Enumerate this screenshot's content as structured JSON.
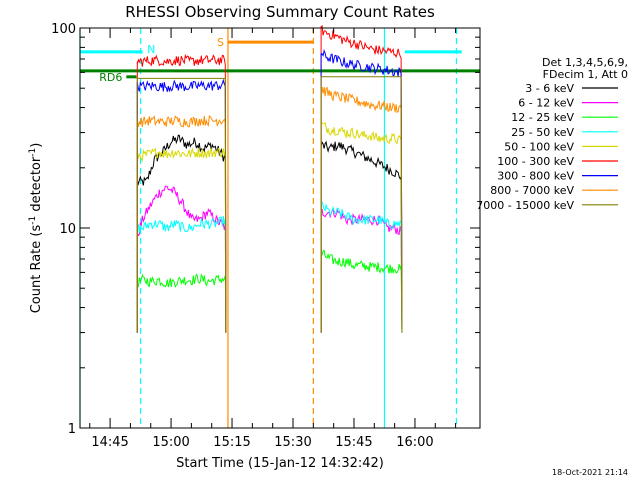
{
  "chart_data": {
    "type": "line",
    "title": "RHESSI Observing Summary Count Rates",
    "xlabel": "Start Time (15-Jan-12 14:32:42)",
    "ylabel_parts": [
      "Count Rate (s",
      "-1",
      " detector",
      "-1",
      ")"
    ],
    "y_scale": "log",
    "ylim": [
      1,
      100
    ],
    "y_ticks": [
      {
        "value": 1,
        "label": "1"
      },
      {
        "value": 10,
        "label": "10"
      },
      {
        "value": 100,
        "label": "100"
      }
    ],
    "xlim_minutes": [
      877.6,
      976.0
    ],
    "x_ticks": [
      {
        "minute": 885,
        "label": "14:45"
      },
      {
        "minute": 900,
        "label": "15:00"
      },
      {
        "minute": 915,
        "label": "15:15"
      },
      {
        "minute": 930,
        "label": "15:30"
      },
      {
        "minute": 945,
        "label": "15:45"
      },
      {
        "minute": 960,
        "label": "16:00"
      }
    ],
    "legend": {
      "header": [
        "Det 1,3,4,5,6,9,",
        "FDecim 1, Att 0"
      ],
      "placement": "right",
      "entries": [
        {
          "label": "3 - 6 keV",
          "color": "#000000"
        },
        {
          "label": "6 - 12 keV",
          "color": "#ff00ff"
        },
        {
          "label": "12 - 25 keV",
          "color": "#00ff00"
        },
        {
          "label": "25 - 50 keV",
          "color": "#00ffff"
        },
        {
          "label": "50 - 100 keV",
          "color": "#d8d800"
        },
        {
          "label": "100 - 300 keV",
          "color": "#ff0000"
        },
        {
          "label": "300 - 800 keV",
          "color": "#0000ff"
        },
        {
          "label": "800 - 7000 keV",
          "color": "#ff8c00"
        },
        {
          "label": "7000 - 15000 keV",
          "color": "#808000"
        }
      ]
    },
    "series": [
      {
        "name": "3 - 6 keV",
        "color": "#000000",
        "segments": [
          {
            "x": [
              891.7,
              894,
              896,
              898,
              900,
              902,
              904,
              906,
              908,
              910,
              912,
              913.5
            ],
            "y": [
              17,
              17,
              22,
              24,
              27,
              28,
              26,
              27,
              25,
              26,
              24,
              22
            ]
          },
          {
            "x": [
              936.9,
              939,
              941,
              943,
              945,
              947,
              949,
              951,
              953,
              955,
              956.8
            ],
            "y": [
              26,
              25,
              26,
              25,
              24,
              23,
              22,
              21,
              20,
              19,
              18
            ]
          }
        ]
      },
      {
        "name": "6 - 12 keV",
        "color": "#ff00ff",
        "segments": [
          {
            "x": [
              891.7,
              893,
              895,
              897,
              899,
              901,
              903,
              905,
              907,
              909,
              911,
              913.5
            ],
            "y": [
              9.0,
              11,
              13,
              15,
              16,
              15,
              13,
              11,
              11,
              12,
              11,
              10
            ]
          },
          {
            "x": [
              936.9,
              939,
              941,
              943,
              945,
              947,
              949,
              951,
              953,
              955,
              956.8
            ],
            "y": [
              12,
              12,
              12,
              11,
              11,
              11,
              11,
              11,
              10,
              10,
              9.5
            ]
          }
        ]
      },
      {
        "name": "12 - 25 keV",
        "color": "#00ff00",
        "segments": [
          {
            "x": [
              891.7,
              893,
              895,
              897,
              899,
              901,
              903,
              905,
              907,
              909,
              911,
              913.5
            ],
            "y": [
              5.3,
              5.5,
              5.4,
              5.5,
              5.3,
              5.4,
              5.5,
              5.5,
              5.6,
              5.4,
              5.5,
              5.6
            ]
          },
          {
            "x": [
              936.9,
              939,
              941,
              943,
              945,
              947,
              949,
              951,
              953,
              955,
              956.8
            ],
            "y": [
              7.5,
              7.0,
              6.8,
              6.8,
              6.5,
              6.5,
              6.4,
              6.4,
              6.3,
              6.3,
              6.2
            ]
          }
        ]
      },
      {
        "name": "25 - 50 keV",
        "color": "#00ffff",
        "segments": [
          {
            "x": [
              891.7,
              893,
              895,
              897,
              899,
              901,
              903,
              905,
              907,
              909,
              911,
              913.5
            ],
            "y": [
              10,
              10,
              10.5,
              10.5,
              10,
              10.5,
              10,
              10,
              10.5,
              10.5,
              10.5,
              11
            ]
          },
          {
            "x": [
              936.9,
              939,
              941,
              943,
              945,
              947,
              949,
              951,
              953,
              955,
              956.8
            ],
            "y": [
              13,
              12,
              12,
              11.5,
              11,
              11,
              11,
              11,
              10.5,
              10.5,
              10.5
            ]
          }
        ]
      },
      {
        "name": "50 - 100 keV",
        "color": "#d8d800",
        "segments": [
          {
            "x": [
              891.7,
              893,
              895,
              897,
              899,
              901,
              903,
              905,
              907,
              909,
              911,
              913.5
            ],
            "y": [
              23,
              23,
              23.5,
              24,
              23.5,
              24,
              23.5,
              23.5,
              24,
              23.5,
              24,
              24
            ]
          },
          {
            "x": [
              936.9,
              939,
              941,
              943,
              945,
              947,
              949,
              951,
              953,
              955,
              956.8
            ],
            "y": [
              33,
              31,
              31,
              30,
              30,
              29,
              29,
              28,
              28,
              28,
              27
            ]
          }
        ]
      },
      {
        "name": "100 - 300 keV",
        "color": "#ff0000",
        "segments": [
          {
            "x": [
              891.7,
              893,
              895,
              897,
              899,
              901,
              903,
              905,
              907,
              909,
              911,
              913.5
            ],
            "y": [
              68,
              68,
              69,
              69,
              68,
              69,
              69,
              68,
              69,
              69,
              69,
              69
            ]
          },
          {
            "x": [
              936.9,
              938,
              940,
              942,
              944,
              946,
              948,
              950,
              952,
              954,
              956,
              956.8
            ],
            "y": [
              98,
              95,
              92,
              88,
              85,
              83,
              80,
              78,
              77,
              76,
              75,
              75
            ]
          }
        ]
      },
      {
        "name": "300 - 800 keV",
        "color": "#0000ff",
        "segments": [
          {
            "x": [
              891.7,
              893,
              895,
              897,
              899,
              901,
              903,
              905,
              907,
              909,
              911,
              913.5
            ],
            "y": [
              51,
              51,
              51.5,
              51,
              51,
              51.5,
              51,
              51,
              51.5,
              51.5,
              51.5,
              52
            ]
          },
          {
            "x": [
              936.9,
              938,
              940,
              942,
              944,
              946,
              948,
              950,
              952,
              954,
              956,
              956.8
            ],
            "y": [
              75,
              72,
              70,
              68,
              66,
              65,
              64,
              63,
              62,
              61,
              60,
              60
            ]
          }
        ]
      },
      {
        "name": "800 - 7000 keV",
        "color": "#ff8c00",
        "segments": [
          {
            "x": [
              891.7,
              893,
              895,
              897,
              899,
              901,
              903,
              905,
              907,
              909,
              911,
              913.5
            ],
            "y": [
              34,
              34,
              34.5,
              34,
              34,
              34.5,
              34,
              34,
              34.5,
              34.5,
              34.5,
              35
            ]
          },
          {
            "x": [
              936.9,
              938,
              940,
              942,
              944,
              946,
              948,
              950,
              952,
              954,
              956,
              956.8
            ],
            "y": [
              50,
              48,
              46,
              45,
              44,
              43,
              42,
              41,
              41,
              40,
              40,
              40
            ]
          }
        ]
      },
      {
        "name": "7000 - 15000 keV",
        "color": "#808000",
        "segments": [
          {
            "x": [
              891.7,
              893,
              895,
              897,
              899,
              901,
              903,
              905,
              907,
              909,
              911,
              913.5
            ],
            "y": [
              56,
              56,
              56,
              56,
              56,
              56,
              56,
              56,
              56,
              56,
              56,
              56
            ]
          },
          {
            "x": [
              936.9,
              938,
              940,
              942,
              944,
              946,
              948,
              950,
              952,
              954,
              956,
              956.8
            ],
            "y": [
              57,
              57,
              57,
              57,
              57,
              57,
              57,
              57,
              57,
              57,
              57,
              57
            ]
          }
        ]
      }
    ],
    "annotations": {
      "horizontal_bars": [
        {
          "label": "N",
          "color": "#00ffff",
          "y": 76,
          "x_start": 877.6,
          "x_end": 893.0
        },
        {
          "label": "",
          "color": "#00ffff",
          "y": 76,
          "x_start": 957.5,
          "x_end": 971.5
        },
        {
          "label": "S",
          "color": "#ff8c00",
          "y": 85,
          "x_start": 914.0,
          "x_end": 935.0
        },
        {
          "label": "RD6",
          "color": "#008000",
          "y": 57,
          "x_start": 889.0,
          "x_end": 891.5
        },
        {
          "label": "",
          "color": "#008000",
          "y": 61,
          "x_start": 877.6,
          "x_end": 976.0
        }
      ],
      "vertical_lines": [
        {
          "minute": 877.6,
          "color": "#00ffff",
          "dashed": false
        },
        {
          "minute": 892.5,
          "color": "#00ffff",
          "dashed": true
        },
        {
          "minute": 914.0,
          "color": "#ff8c00",
          "dashed": false
        },
        {
          "minute": 935.0,
          "color": "#ff8c00",
          "dashed": true
        },
        {
          "minute": 952.5,
          "color": "#00ffff",
          "dashed": false
        },
        {
          "minute": 970.2,
          "color": "#00ffff",
          "dashed": true
        }
      ]
    },
    "timestamp": "18-Oct-2021 21:14"
  }
}
